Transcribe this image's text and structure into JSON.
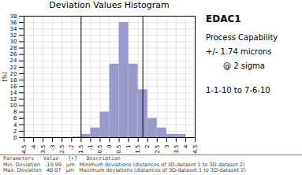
{
  "chart_data": {
    "type": "histogram",
    "title": "Deviation Values Histogram",
    "ylabel": "[%]",
    "bins": [
      -4.5,
      -4.0,
      -3.5,
      -3.0,
      -2.5,
      -2.0,
      -1.5,
      -1.0,
      -0.5,
      0.0,
      0.5,
      1.0,
      1.5,
      2.0,
      2.5,
      3.0,
      3.5,
      4.0,
      4.5
    ],
    "values": [
      0,
      0,
      0,
      0,
      0,
      0.2,
      1,
      3,
      8,
      23,
      36,
      23,
      15,
      6,
      3,
      1,
      1,
      0
    ],
    "color": "#9999cc",
    "xlim": [
      -4.5,
      4.5
    ],
    "ylim": [
      0,
      38
    ],
    "xticks": [
      -4.5,
      -4.0,
      -3.5,
      -3.0,
      -2.5,
      -2.0,
      -1.5,
      -1.0,
      -0.5,
      0.0,
      0.5,
      1.0,
      1.5,
      2.0,
      2.5,
      3.0,
      3.5,
      4.0,
      4.5
    ],
    "yticks": [
      0,
      2,
      4,
      6,
      8,
      10,
      12,
      14,
      16,
      18,
      20,
      22,
      24,
      26,
      28,
      30,
      32,
      34,
      36,
      38
    ],
    "grid": true,
    "vlines": [
      -1.5,
      1.75
    ],
    "annotations": [
      "EDAC1",
      "Process Capability",
      "+/- 1.74 microns",
      "@ 2 sigma",
      "1-1-10 to 7-6-10"
    ],
    "footnotes": [
      "Parameters   Value   [+]   Description",
      "Min. Deviation   -19.99   µm   Minimum deviations (distances of 3D-dataset 1 to 3D-dataset 2)",
      "Max. Deviation   46.07   µm   Maximum deviations (distances of 3D-dataset 1 to 3D-dataset 2)"
    ]
  }
}
